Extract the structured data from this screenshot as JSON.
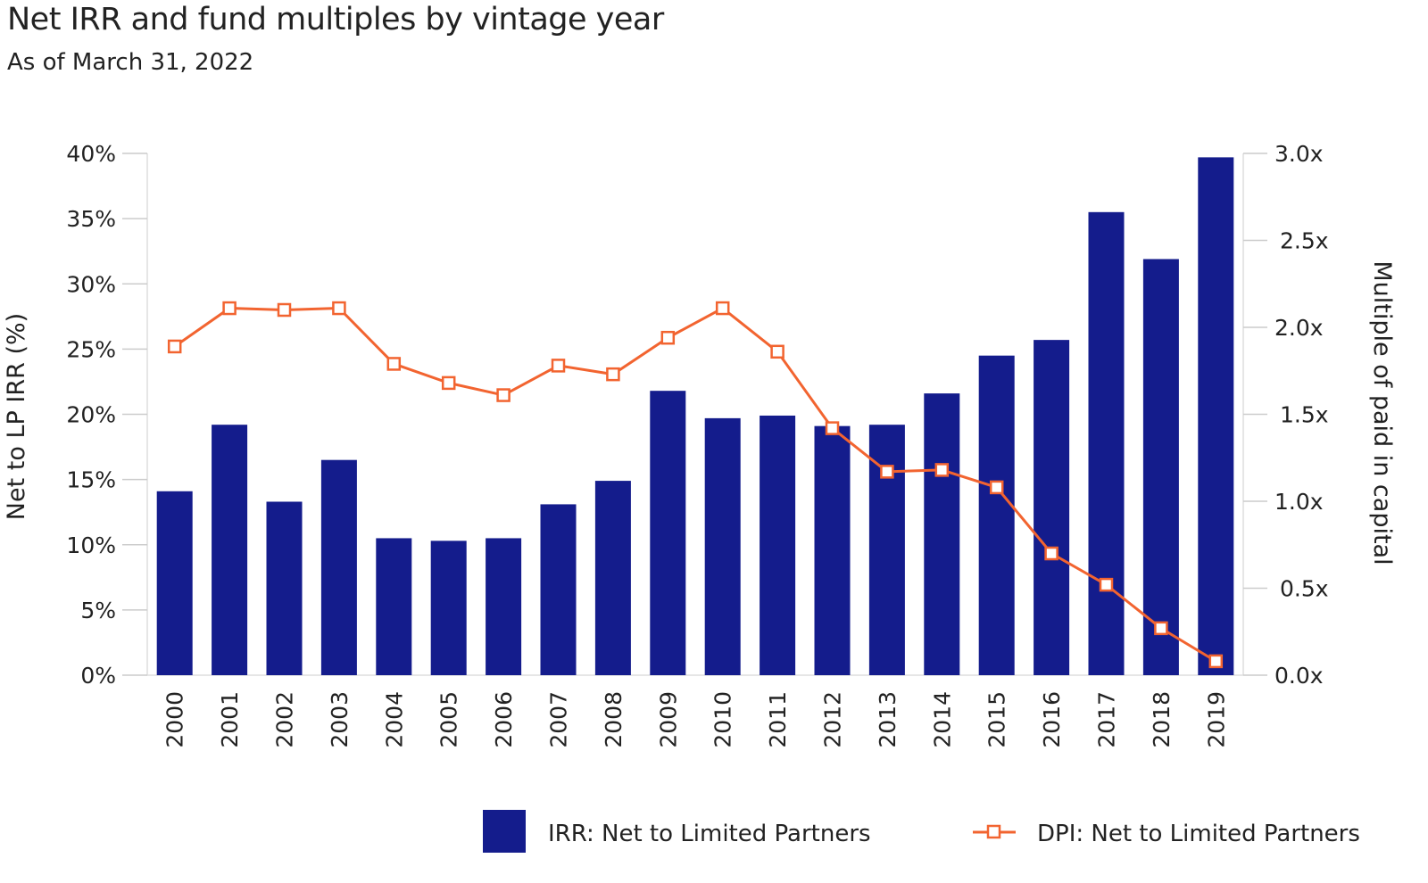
{
  "chart_data": {
    "type": "bar+line",
    "title": "Net IRR and fund multiples by vintage year",
    "subtitle": "As of March 31, 2022",
    "categories": [
      "2000",
      "2001",
      "2002",
      "2003",
      "2004",
      "2005",
      "2006",
      "2007",
      "2008",
      "2009",
      "2010",
      "2011",
      "2012",
      "2013",
      "2014",
      "2015",
      "2016",
      "2017",
      "2018",
      "2019"
    ],
    "series": [
      {
        "name": "IRR: Net to Limited Partners",
        "type": "bar",
        "axis": "left",
        "color": "#141C8C",
        "values": [
          14.1,
          19.2,
          13.3,
          16.5,
          10.5,
          10.3,
          10.5,
          13.1,
          14.9,
          21.8,
          19.7,
          19.9,
          19.1,
          19.2,
          21.6,
          24.5,
          25.7,
          35.5,
          31.9,
          39.7
        ]
      },
      {
        "name": "DPI: Net to Limited Partners",
        "type": "line",
        "axis": "right",
        "color": "#F26430",
        "marker": "square-open",
        "values": [
          1.89,
          2.11,
          2.1,
          2.11,
          1.79,
          1.68,
          1.61,
          1.78,
          1.73,
          1.94,
          2.11,
          1.86,
          1.42,
          1.17,
          1.18,
          1.08,
          0.7,
          0.52,
          0.27,
          0.08
        ]
      }
    ],
    "ylabel": "Net to LP IRR (%)",
    "ylim": [
      0,
      40
    ],
    "yticks": [
      "0%",
      "5%",
      "10%",
      "15%",
      "20%",
      "25%",
      "30%",
      "35%",
      "40%"
    ],
    "y2label": "Multiple of paid in capital",
    "y2lim": [
      0,
      3
    ],
    "y2ticks": [
      "0.0x",
      "0.5x",
      "1.0x",
      "1.5x",
      "2.0x",
      "2.5x",
      "3.0x"
    ],
    "grid": false,
    "legend": "bottom-right"
  }
}
